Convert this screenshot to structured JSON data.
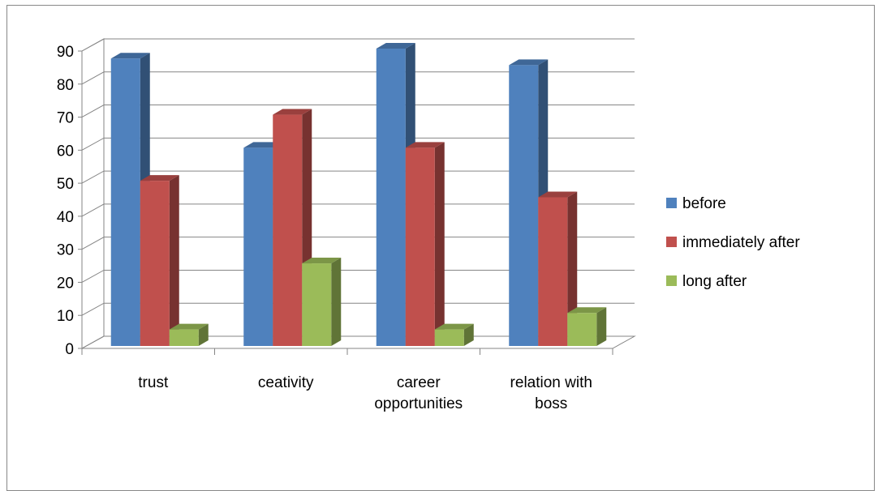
{
  "chart_data": {
    "type": "bar",
    "title": "",
    "xlabel": "",
    "ylabel": "",
    "ylim": [
      0,
      90
    ],
    "yticks": [
      0,
      10,
      20,
      30,
      40,
      50,
      60,
      70,
      80,
      90
    ],
    "grid": true,
    "legend_position": "right",
    "three_d": true,
    "categories": [
      [
        "trust"
      ],
      [
        "ceativity"
      ],
      [
        "career",
        "opportunities"
      ],
      [
        "relation with",
        "boss"
      ]
    ],
    "series": [
      {
        "name": "before",
        "color": "#4F81BD",
        "values": [
          87,
          60,
          90,
          85
        ]
      },
      {
        "name": "immediately after",
        "color": "#C0504D",
        "values": [
          50,
          70,
          60,
          45
        ]
      },
      {
        "name": "long after",
        "color": "#9BBB59",
        "values": [
          5,
          25,
          5,
          10
        ]
      }
    ]
  }
}
